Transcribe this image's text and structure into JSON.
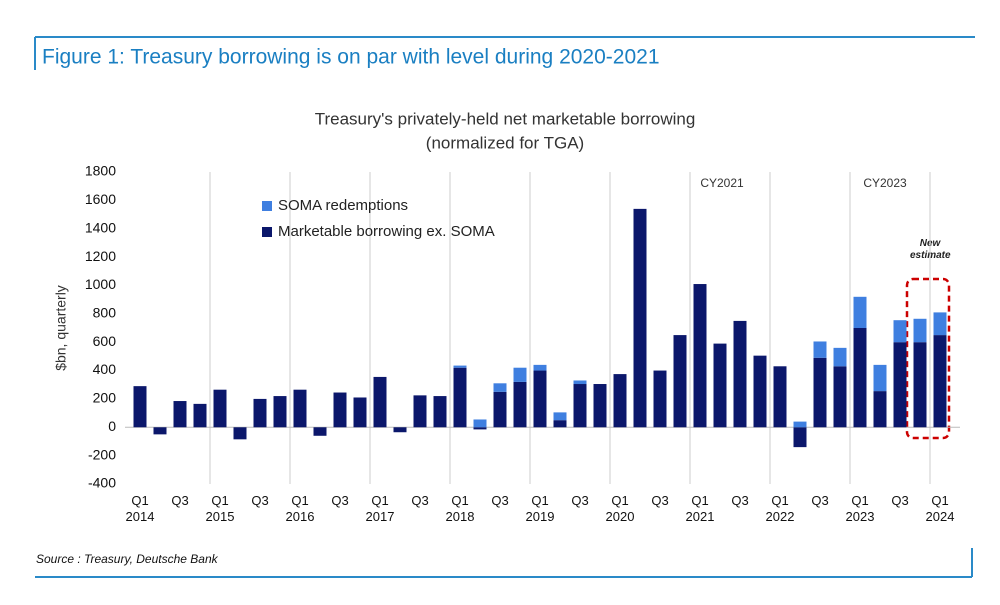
{
  "chart_data": {
    "type": "bar",
    "stacked": true,
    "figure_title": "Figure 1: Treasury borrowing is on par with level during 2020-2021",
    "title": "Treasury's privately-held net marketable borrowing",
    "subtitle": "(normalized for TGA)",
    "ylabel": "$bn, quarterly",
    "source": "Source : Treasury, Deutsche Bank",
    "annotations": [
      "CY2021",
      "CY2023",
      "New estimate"
    ],
    "categories": [
      "Q1\n2014",
      null,
      "Q3",
      null,
      "Q1\n2015",
      null,
      "Q3",
      null,
      "Q1\n2016",
      null,
      "Q3",
      null,
      "Q1\n2017",
      null,
      "Q3",
      null,
      "Q1\n2018",
      null,
      "Q3",
      null,
      "Q1\n2019",
      null,
      "Q3",
      null,
      "Q1\n2020",
      null,
      "Q3",
      null,
      "Q1\n2021",
      null,
      "Q3",
      null,
      "Q1\n2022",
      null,
      "Q3",
      null,
      "Q1\n2023",
      null,
      "Q3",
      null,
      "Q1\n2024"
    ],
    "series": [
      {
        "name": "Marketable borrowing ex. SOMA",
        "color": "#0b176b",
        "values": [
          290,
          -50,
          185,
          165,
          265,
          -85,
          200,
          220,
          265,
          -60,
          245,
          210,
          355,
          -35,
          225,
          220,
          420,
          -15,
          250,
          320,
          400,
          50,
          305,
          305,
          375,
          1540,
          400,
          650,
          1010,
          590,
          750,
          505,
          430,
          -140,
          490,
          430,
          700,
          255,
          600,
          600,
          650
        ]
      },
      {
        "name": "SOMA redemptions",
        "color": "#3f7fe0",
        "values": [
          0,
          0,
          0,
          0,
          0,
          0,
          0,
          0,
          0,
          0,
          0,
          0,
          0,
          0,
          0,
          0,
          15,
          55,
          60,
          100,
          40,
          55,
          25,
          0,
          0,
          0,
          0,
          0,
          0,
          0,
          0,
          0,
          0,
          40,
          115,
          130,
          220,
          185,
          155,
          165,
          160
        ]
      }
    ],
    "ylim": [
      -400,
      1800
    ],
    "yticks": [
      -400,
      -200,
      0,
      200,
      400,
      600,
      800,
      1000,
      1200,
      1400,
      1600,
      1800
    ],
    "legend": "upper left"
  }
}
